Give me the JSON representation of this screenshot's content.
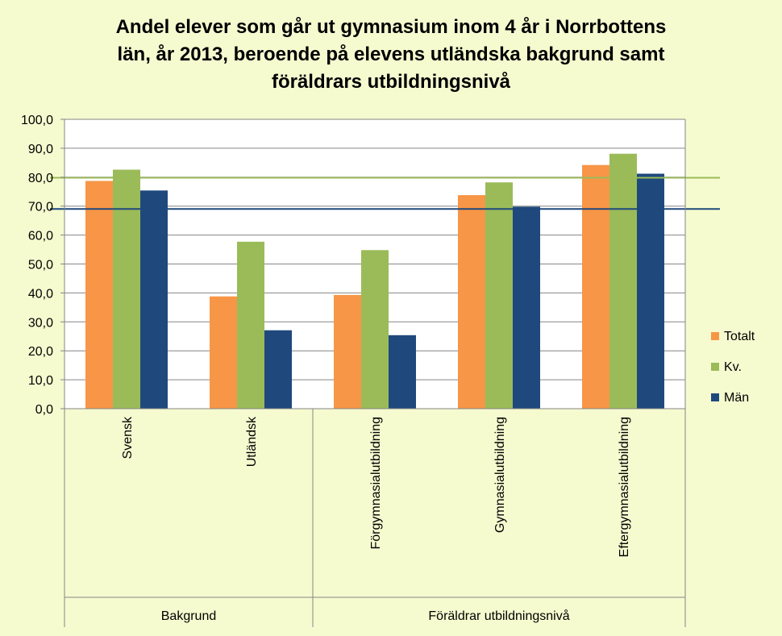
{
  "chart_data": {
    "type": "bar",
    "title_lines": [
      "Andel elever som går ut gymnasium inom 4 år i Norrbottens",
      "län, år 2013, beroende på elevens utländska bakgrund samt",
      "föräldrars utbildningsnivå"
    ],
    "categories": [
      "Svensk",
      "Utländsk",
      "Förgymnasialutbildning",
      "Gymnasialutbildning",
      "Eftergymnasialutbildning"
    ],
    "groups": [
      {
        "label": "Bakgrund",
        "categories": [
          "Svensk",
          "Utländsk"
        ]
      },
      {
        "label": "Föräldrar utbildningsnivå",
        "categories": [
          "Förgymnasialutbildning",
          "Gymnasialutbildning",
          "Eftergymnasialutbildning"
        ]
      }
    ],
    "series": [
      {
        "name": "Totalt",
        "color": "#f79646",
        "values": [
          78.7,
          38.8,
          39.3,
          73.8,
          84.2
        ]
      },
      {
        "name": "Kv.",
        "color": "#9bbb59",
        "values": [
          82.6,
          57.7,
          54.8,
          78.2,
          88.1
        ]
      },
      {
        "name": "Män",
        "color": "#1f497d",
        "values": [
          75.4,
          27.1,
          25.4,
          69.8,
          81.2
        ]
      }
    ],
    "reference_lines": [
      {
        "color": "#9bbb59",
        "value": 79.8
      },
      {
        "color": "#1f497d",
        "value": 69.0
      }
    ],
    "ylim": [
      0,
      100
    ],
    "yticks": [
      "0,0",
      "10,0",
      "20,0",
      "30,0",
      "40,0",
      "50,0",
      "60,0",
      "70,0",
      "80,0",
      "90,0",
      "100,0"
    ],
    "grid": true,
    "legend_position": "right"
  }
}
